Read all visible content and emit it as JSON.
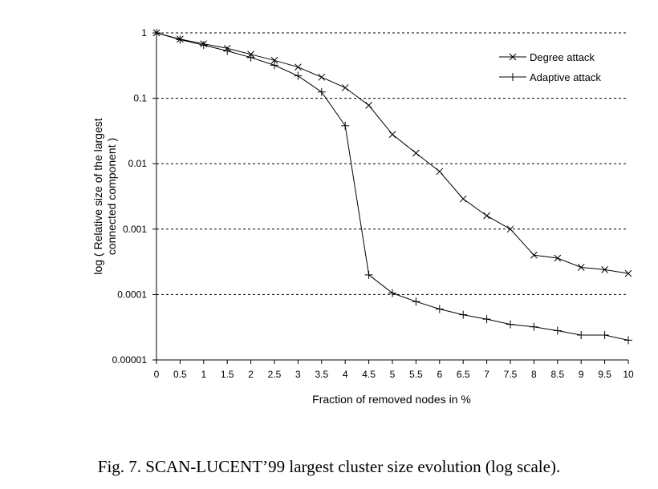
{
  "chart_data": {
    "type": "line",
    "title": "",
    "xlabel": "Fraction of removed nodes in %",
    "ylabel_lines": [
      "log ( Relative size of the largest",
      "connected component )"
    ],
    "x": [
      0,
      0.5,
      1,
      1.5,
      2,
      2.5,
      3,
      3.5,
      4,
      4.5,
      5,
      5.5,
      6,
      6.5,
      7,
      7.5,
      8,
      8.5,
      9,
      9.5,
      10
    ],
    "x_tick_labels": [
      "0",
      "0.5",
      "1",
      "1.5",
      "2",
      "2.5",
      "3",
      "3.5",
      "4",
      "4.5",
      "5",
      "5.5",
      "6",
      "6.5",
      "7",
      "7.5",
      "8",
      "8.5",
      "9",
      "9.5",
      "10"
    ],
    "y_scale": "log",
    "ylim": [
      1e-05,
      1
    ],
    "y_ticks": [
      1,
      0.1,
      0.01,
      0.001,
      0.0001,
      1e-05
    ],
    "y_tick_labels": [
      "1",
      "0.1",
      "0.01",
      "0.001",
      "0.0001",
      "0.00001"
    ],
    "grid": "horizontal dashed",
    "legend_position": "top-right",
    "series": [
      {
        "name": "Degree attack",
        "marker": "x",
        "values": [
          1,
          0.8,
          0.68,
          0.58,
          0.47,
          0.38,
          0.3,
          0.21,
          0.145,
          0.078,
          0.028,
          0.0145,
          0.0076,
          0.0029,
          0.0016,
          0.001,
          0.0004,
          0.00036,
          0.00026,
          0.00024,
          0.00021
        ]
      },
      {
        "name": "Adaptive attack",
        "marker": "+",
        "values": [
          1,
          0.79,
          0.65,
          0.53,
          0.42,
          0.32,
          0.22,
          0.125,
          0.038,
          0.0002,
          0.000105,
          7.8e-05,
          6e-05,
          4.9e-05,
          4.2e-05,
          3.5e-05,
          3.2e-05,
          2.8e-05,
          2.4e-05,
          2.4e-05,
          2e-05
        ]
      }
    ]
  },
  "caption": "Fig. 7.    SCAN-LUCENT’99 largest cluster size evolution (log scale)."
}
